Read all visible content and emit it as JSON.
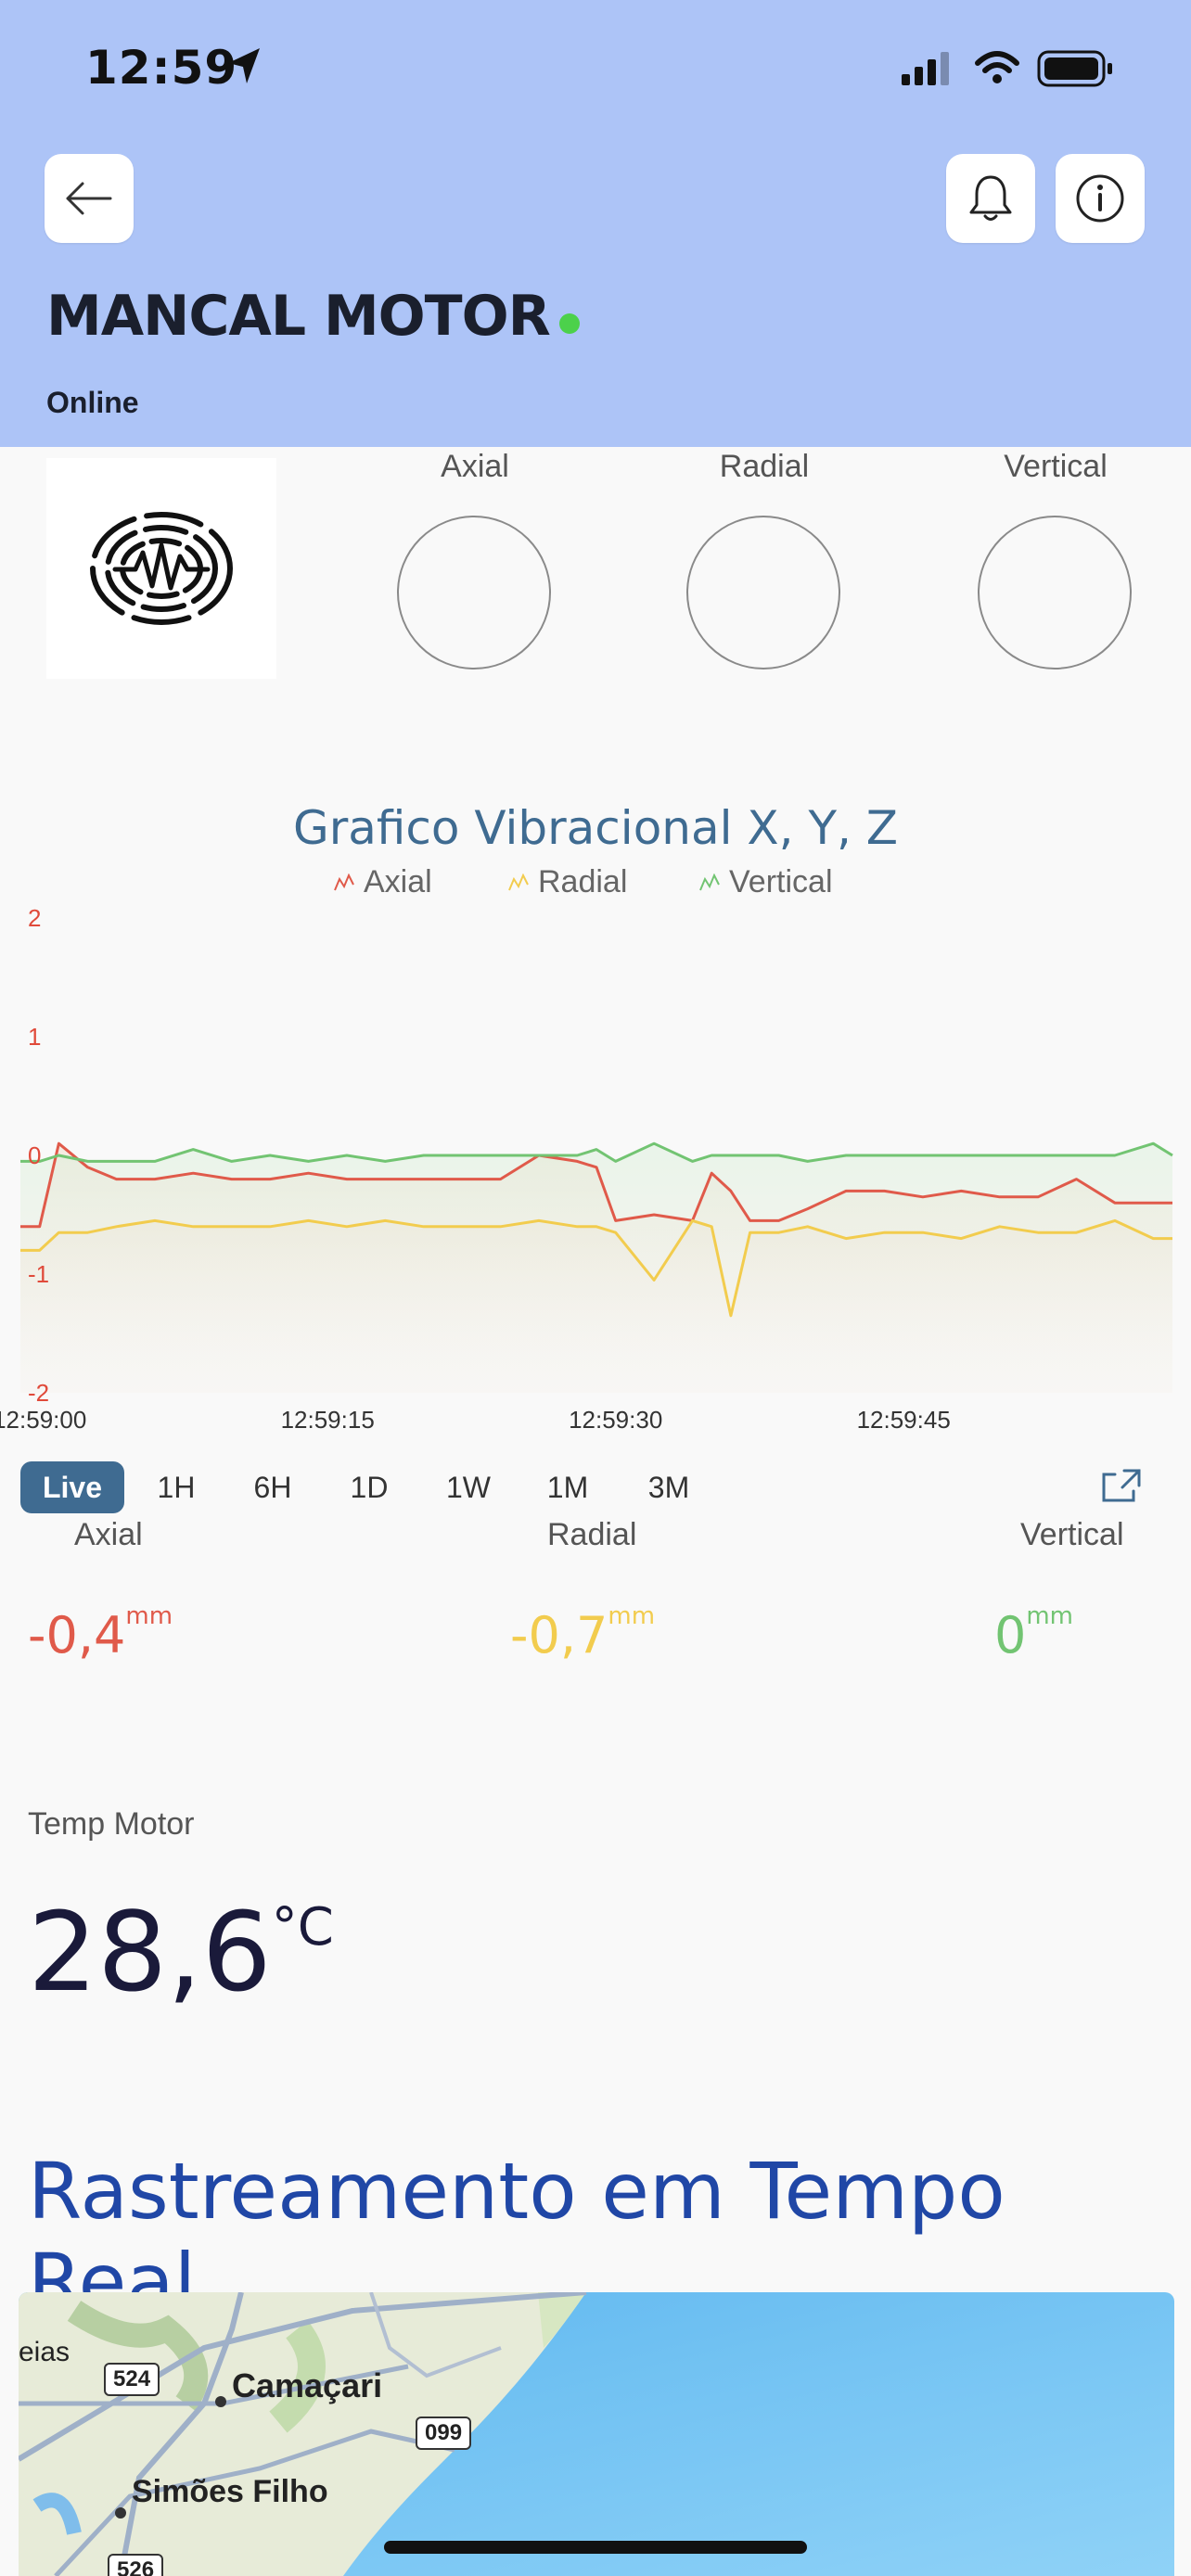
{
  "status_bar": {
    "time": "12:59"
  },
  "header": {
    "title": "MANCAL MOTOR",
    "status": "Online",
    "status_color": "#4cd14b",
    "icons": [
      "back-arrow-icon",
      "bell-icon",
      "info-icon"
    ]
  },
  "gauges": [
    {
      "label": "Axial"
    },
    {
      "label": "Radial"
    },
    {
      "label": "Vertical"
    }
  ],
  "chart_data": {
    "type": "area",
    "title": "Grafico Vibracional X, Y, Z",
    "legend": [
      "Axial",
      "Radial",
      "Vertical"
    ],
    "colors": {
      "Axial": "#e05a4a",
      "Radial": "#f2cc4e",
      "Vertical": "#72c472"
    },
    "ylim": [
      -2,
      2
    ],
    "yticks": [
      "2",
      "1",
      "0",
      "-1",
      "-2"
    ],
    "xticks": [
      "12:59:00",
      "12:59:15",
      "12:59:30",
      "12:59:45"
    ],
    "x_seconds_after": [
      -1,
      0,
      1,
      2.5,
      4,
      6,
      8,
      10,
      12,
      14,
      16,
      18,
      20,
      22,
      24,
      26,
      28,
      29,
      30,
      32,
      34,
      35,
      36,
      37,
      38.5,
      40,
      42,
      44,
      46,
      48,
      50,
      52,
      54,
      56,
      58,
      59
    ],
    "series": [
      {
        "name": "Axial",
        "values": [
          -0.6,
          -0.6,
          0.1,
          -0.1,
          -0.2,
          -0.2,
          -0.15,
          -0.2,
          -0.2,
          -0.15,
          -0.2,
          -0.2,
          -0.2,
          -0.2,
          -0.2,
          0.0,
          -0.05,
          -0.1,
          -0.55,
          -0.5,
          -0.55,
          -0.15,
          -0.3,
          -0.55,
          -0.55,
          -0.45,
          -0.3,
          -0.3,
          -0.35,
          -0.3,
          -0.35,
          -0.35,
          -0.2,
          -0.4,
          -0.4,
          -0.4
        ]
      },
      {
        "name": "Radial",
        "values": [
          -0.8,
          -0.8,
          -0.65,
          -0.65,
          -0.6,
          -0.55,
          -0.6,
          -0.6,
          -0.6,
          -0.55,
          -0.6,
          -0.55,
          -0.6,
          -0.6,
          -0.6,
          -0.55,
          -0.6,
          -0.6,
          -0.65,
          -1.05,
          -0.55,
          -0.6,
          -1.35,
          -0.65,
          -0.65,
          -0.6,
          -0.7,
          -0.65,
          -0.65,
          -0.7,
          -0.6,
          -0.65,
          -0.65,
          -0.55,
          -0.7,
          -0.7
        ]
      },
      {
        "name": "Vertical",
        "values": [
          -0.05,
          -0.05,
          0.0,
          -0.05,
          -0.05,
          -0.05,
          0.05,
          -0.05,
          0.0,
          -0.05,
          0.0,
          -0.05,
          0.0,
          0.0,
          0.0,
          0.0,
          0.0,
          0.05,
          -0.05,
          0.1,
          -0.05,
          0.0,
          0.0,
          0.0,
          0.0,
          -0.05,
          0.0,
          0.0,
          0.0,
          0.0,
          0.0,
          0.0,
          0.0,
          0.0,
          0.1,
          0.0
        ]
      }
    ]
  },
  "time_ranges": [
    "Live",
    "1H",
    "6H",
    "1D",
    "1W",
    "1M",
    "3M"
  ],
  "time_range_selected": "Live",
  "readings": [
    {
      "label": "Axial",
      "value": "-0,4",
      "unit": "mm",
      "color": "#e05a4a"
    },
    {
      "label": "Radial",
      "value": "-0,7",
      "unit": "mm",
      "color": "#f2cc4e"
    },
    {
      "label": "Vertical",
      "value": "0",
      "unit": "mm",
      "color": "#72c472"
    }
  ],
  "temperature": {
    "label": "Temp Motor",
    "value": "28,6",
    "unit": "°C"
  },
  "tracking": {
    "title": "Rastreamento em Tempo Real",
    "map_labels": {
      "city1": "Camaçari",
      "city2": "Simões Filho",
      "partial": "eias",
      "road1": "524",
      "road2": "099",
      "road3": "526"
    }
  }
}
